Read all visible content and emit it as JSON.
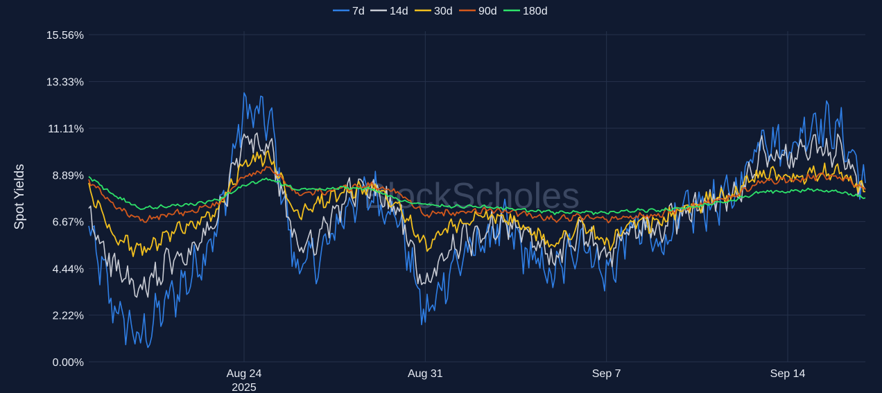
{
  "chart_data": {
    "type": "line",
    "ylabel": "Spot Yields",
    "watermark": "BlockScholes",
    "y_ticks": [
      "0.00%",
      "2.22%",
      "4.44%",
      "6.67%",
      "8.89%",
      "11.11%",
      "13.33%",
      "15.56%"
    ],
    "ylim": [
      0,
      15.56
    ],
    "xlim": [
      "2025-08-18",
      "2025-09-17"
    ],
    "x_ticks": [
      {
        "date": "2025-08-24",
        "label": "Aug 24",
        "sublabel": "2025"
      },
      {
        "date": "2025-08-31",
        "label": "Aug 31",
        "sublabel": ""
      },
      {
        "date": "2025-09-07",
        "label": "Sep 7",
        "sublabel": ""
      },
      {
        "date": "2025-09-14",
        "label": "Sep 14",
        "sublabel": ""
      }
    ],
    "grid": true,
    "legend_position": "top-center",
    "x": [
      "2025-08-18",
      "2025-08-19",
      "2025-08-20",
      "2025-08-21",
      "2025-08-22",
      "2025-08-23",
      "2025-08-24",
      "2025-08-25",
      "2025-08-26",
      "2025-08-27",
      "2025-08-28",
      "2025-08-29",
      "2025-08-30",
      "2025-08-31",
      "2025-09-01",
      "2025-09-02",
      "2025-09-03",
      "2025-09-04",
      "2025-09-05",
      "2025-09-06",
      "2025-09-07",
      "2025-09-08",
      "2025-09-09",
      "2025-09-10",
      "2025-09-11",
      "2025-09-12",
      "2025-09-13",
      "2025-09-14",
      "2025-09-15",
      "2025-09-16",
      "2025-09-17"
    ],
    "series": [
      {
        "name": "7d",
        "color": "#2f7fe6",
        "values": [
          6.2,
          2.5,
          1.0,
          2.8,
          4.2,
          6.5,
          12.0,
          11.5,
          4.5,
          5.0,
          7.5,
          8.0,
          6.8,
          2.0,
          4.5,
          5.5,
          6.5,
          5.0,
          4.0,
          6.0,
          4.0,
          6.5,
          5.5,
          7.0,
          7.5,
          8.0,
          11.0,
          10.0,
          11.5,
          11.0,
          8.5
        ]
      },
      {
        "name": "14d",
        "color": "#c9ccd4",
        "values": [
          6.8,
          4.5,
          3.2,
          4.6,
          5.2,
          6.8,
          10.5,
          10.2,
          5.5,
          6.0,
          8.0,
          8.2,
          7.0,
          3.5,
          5.5,
          6.0,
          6.8,
          5.8,
          4.8,
          6.3,
          4.8,
          6.5,
          6.2,
          7.2,
          7.6,
          8.0,
          10.0,
          9.5,
          10.2,
          10.0,
          8.2
        ]
      },
      {
        "name": "30d",
        "color": "#f2c01e",
        "values": [
          8.2,
          6.0,
          5.2,
          6.0,
          6.6,
          7.2,
          9.5,
          9.8,
          7.0,
          7.6,
          8.1,
          8.3,
          7.5,
          5.5,
          6.4,
          6.8,
          7.0,
          6.2,
          5.6,
          6.6,
          5.6,
          6.5,
          6.6,
          7.3,
          7.7,
          8.0,
          9.0,
          8.8,
          9.0,
          9.0,
          8.1
        ]
      },
      {
        "name": "90d",
        "color": "#d4581c",
        "values": [
          8.6,
          7.4,
          6.7,
          7.0,
          7.2,
          7.5,
          8.8,
          9.2,
          8.0,
          8.1,
          8.3,
          8.4,
          8.0,
          7.0,
          7.1,
          7.2,
          7.2,
          7.0,
          6.8,
          6.9,
          6.8,
          6.9,
          7.0,
          7.3,
          7.6,
          7.9,
          8.6,
          8.6,
          8.8,
          8.8,
          8.2
        ]
      },
      {
        "name": "180d",
        "color": "#2ee46a",
        "values": [
          8.8,
          7.9,
          7.3,
          7.4,
          7.5,
          7.7,
          8.4,
          8.7,
          8.2,
          8.2,
          8.3,
          8.2,
          7.7,
          7.5,
          7.4,
          7.4,
          7.3,
          7.2,
          7.1,
          7.1,
          7.1,
          7.2,
          7.2,
          7.3,
          7.5,
          7.7,
          8.1,
          8.1,
          8.2,
          8.1,
          7.8
        ]
      }
    ]
  }
}
